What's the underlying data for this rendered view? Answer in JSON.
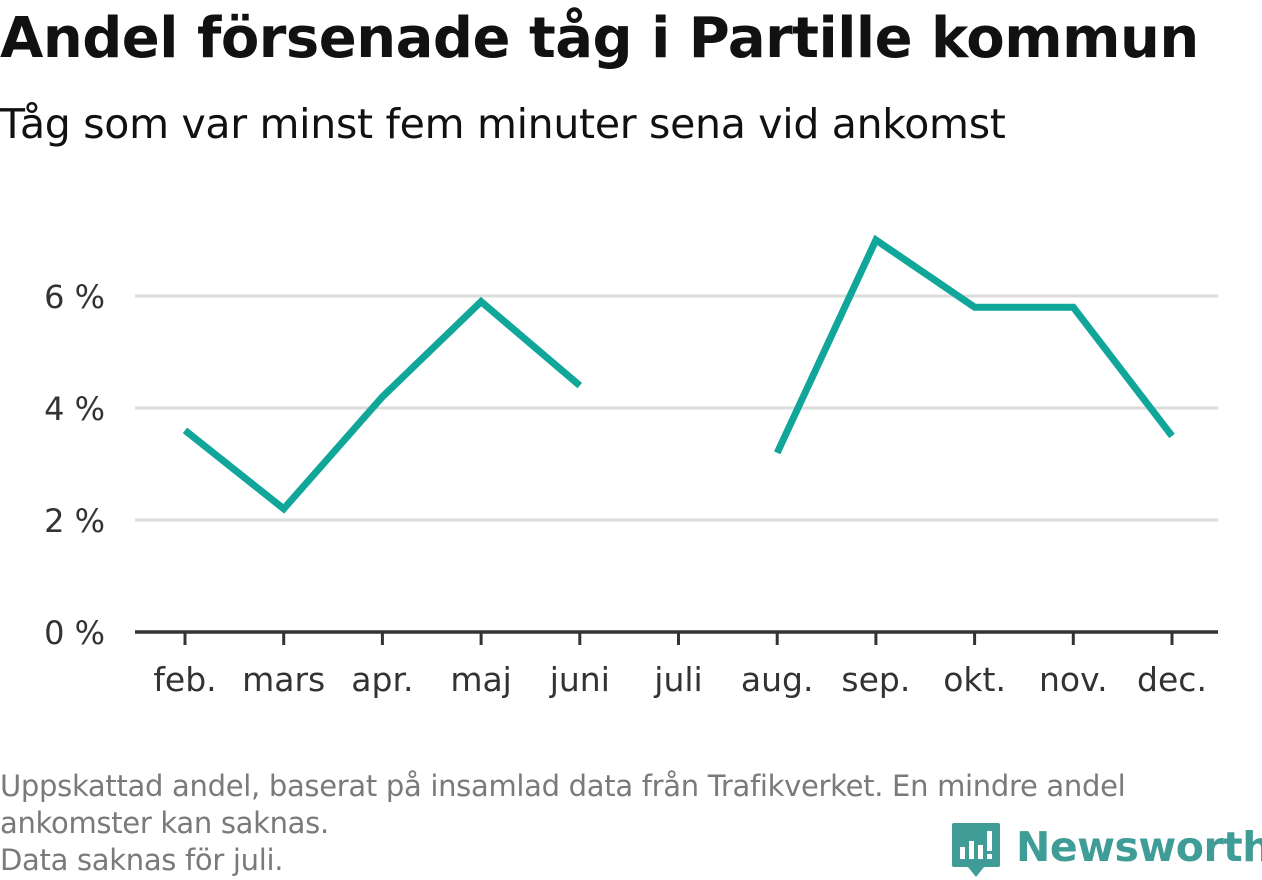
{
  "chart_data": {
    "type": "line",
    "title": "Andel försenade tåg i Partille kommun",
    "subtitle": "Tåg som var minst fem minuter sena vid ankomst",
    "categories": [
      "feb.",
      "mars",
      "apr.",
      "maj",
      "juni",
      "juli",
      "aug.",
      "sep.",
      "okt.",
      "nov.",
      "dec."
    ],
    "series": [
      {
        "values": [
          3.6,
          2.2,
          4.2,
          5.9,
          4.4,
          null,
          3.2,
          7.0,
          5.8,
          5.8,
          3.5
        ],
        "color": "#10a69a"
      }
    ],
    "y_ticks": [
      {
        "value": 0,
        "label": "0 %"
      },
      {
        "value": 2,
        "label": "2 %"
      },
      {
        "value": 4,
        "label": "4 %"
      },
      {
        "value": 6,
        "label": "6 %"
      }
    ],
    "ylim": [
      0,
      7.5
    ],
    "grid": true,
    "xlabel": "",
    "ylabel": ""
  },
  "footer": {
    "note_line1": "Uppskattad andel, baserat på insamlad data från Trafikverket. En mindre andel",
    "note_line2": "ankomster kan saknas.",
    "note_line3": "Data saknas för juli."
  },
  "brand": {
    "name": "Newsworthy",
    "icon": "newsworthy-logo-icon",
    "color": "#3f9c97"
  }
}
